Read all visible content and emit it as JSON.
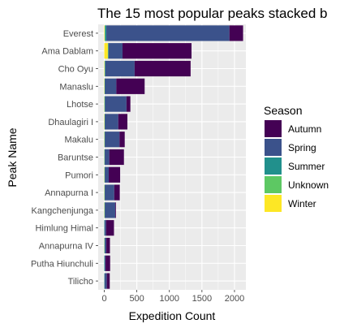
{
  "chart_data": {
    "type": "bar",
    "orientation": "horizontal",
    "stacked": true,
    "title": "The 15 most popular peaks stacked b",
    "xlabel": "Expedition Count",
    "ylabel": "Peak Name",
    "xlim": [
      0,
      2250
    ],
    "xticks": [
      0,
      500,
      1000,
      1500,
      2000
    ],
    "xtick_labels": [
      "0",
      "500",
      "1000",
      "1500",
      "2000"
    ],
    "grid": true,
    "legend_position": "right",
    "legend_title": "Season",
    "categories": [
      "Everest",
      "Ama Dablam",
      "Cho Oyu",
      "Manaslu",
      "Lhotse",
      "Dhaulagiri I",
      "Makalu",
      "Baruntse",
      "Pumori",
      "Annapurna I",
      "Kangchenjunga",
      "Himlung Himal",
      "Annapurna IV",
      "Putha Hiunchuli",
      "Tilicho"
    ],
    "series": [
      {
        "name": "Winter",
        "color": "#FDE725",
        "values": [
          8,
          55,
          5,
          4,
          3,
          4,
          3,
          2,
          3,
          3,
          3,
          0,
          2,
          0,
          0
        ]
      },
      {
        "name": "Unknown",
        "color": "#5DC863",
        "values": [
          4,
          5,
          3,
          2,
          2,
          2,
          2,
          2,
          2,
          2,
          2,
          2,
          2,
          2,
          2
        ]
      },
      {
        "name": "Summer",
        "color": "#21908C",
        "values": [
          20,
          5,
          8,
          4,
          6,
          4,
          4,
          3,
          4,
          3,
          4,
          2,
          3,
          3,
          2
        ]
      },
      {
        "name": "Spring",
        "color": "#3B528B",
        "values": [
          1890,
          215,
          450,
          175,
          330,
          205,
          225,
          70,
          60,
          145,
          160,
          25,
          25,
          15,
          35
        ]
      },
      {
        "name": "Autumn",
        "color": "#440154",
        "values": [
          210,
          1060,
          860,
          435,
          60,
          140,
          80,
          225,
          175,
          85,
          10,
          120,
          55,
          70,
          45
        ]
      }
    ]
  }
}
